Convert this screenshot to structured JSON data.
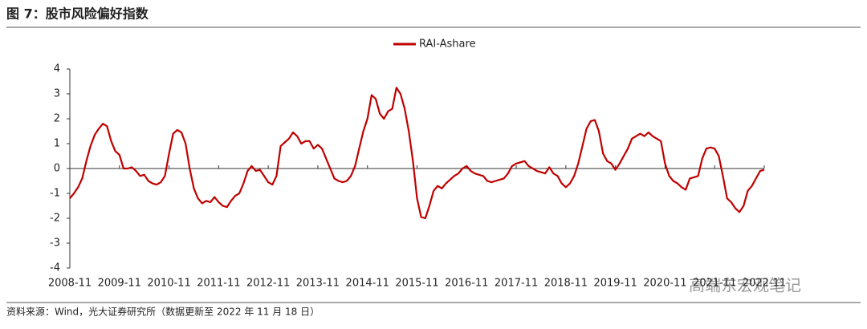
{
  "header": {
    "title": "图 7：股市风险偏好指数"
  },
  "chart_data": {
    "type": "line",
    "categories": [
      "2008-11",
      null,
      null,
      null,
      null,
      null,
      null,
      null,
      null,
      null,
      null,
      null,
      "2009-11",
      null,
      null,
      null,
      null,
      null,
      null,
      null,
      null,
      null,
      null,
      null,
      "2010-11",
      null,
      null,
      null,
      null,
      null,
      null,
      null,
      null,
      null,
      null,
      null,
      "2011-11",
      null,
      null,
      null,
      null,
      null,
      null,
      null,
      null,
      null,
      null,
      null,
      "2012-11",
      null,
      null,
      null,
      null,
      null,
      null,
      null,
      null,
      null,
      null,
      null,
      "2013-11",
      null,
      null,
      null,
      null,
      null,
      null,
      null,
      null,
      null,
      null,
      null,
      "2014-11",
      null,
      null,
      null,
      null,
      null,
      null,
      null,
      null,
      null,
      null,
      null,
      "2015-11",
      null,
      null,
      null,
      null,
      null,
      null,
      null,
      null,
      null,
      null,
      null,
      "2016-11",
      null,
      null,
      null,
      null,
      null,
      null,
      null,
      null,
      null,
      null,
      null,
      "2017-11",
      null,
      null,
      null,
      null,
      null,
      null,
      null,
      null,
      null,
      null,
      null,
      "2018-11",
      null,
      null,
      null,
      null,
      null,
      null,
      null,
      null,
      null,
      null,
      null,
      "2019-11",
      null,
      null,
      null,
      null,
      null,
      null,
      null,
      null,
      null,
      null,
      null,
      "2020-11",
      null,
      null,
      null,
      null,
      null,
      null,
      null,
      null,
      null,
      null,
      null,
      "2021-11",
      null,
      null,
      null,
      null,
      null,
      null,
      null,
      null,
      null,
      null,
      null,
      "2022-11"
    ],
    "series": [
      {
        "name": "RAI-Ashare",
        "color": "#c00000",
        "values": [
          -1.2,
          -1.0,
          -0.75,
          -0.4,
          0.3,
          0.9,
          1.35,
          1.6,
          1.8,
          1.7,
          1.1,
          0.7,
          0.55,
          0.0,
          0.0,
          0.05,
          -0.1,
          -0.3,
          -0.25,
          -0.5,
          -0.6,
          -0.65,
          -0.55,
          -0.3,
          0.6,
          1.4,
          1.55,
          1.45,
          1.0,
          0.0,
          -0.8,
          -1.2,
          -1.4,
          -1.3,
          -1.35,
          -1.15,
          -1.35,
          -1.5,
          -1.55,
          -1.3,
          -1.1,
          -1.0,
          -0.6,
          -0.1,
          0.1,
          -0.1,
          -0.05,
          -0.3,
          -0.55,
          -0.65,
          -0.3,
          0.9,
          1.05,
          1.2,
          1.45,
          1.3,
          1.0,
          1.1,
          1.1,
          0.8,
          0.95,
          0.8,
          0.4,
          0.0,
          -0.4,
          -0.5,
          -0.55,
          -0.5,
          -0.3,
          0.1,
          0.8,
          1.5,
          2.0,
          2.95,
          2.8,
          2.2,
          2.0,
          2.3,
          2.4,
          3.25,
          3.0,
          2.4,
          1.5,
          0.3,
          -1.2,
          -1.95,
          -2.0,
          -1.5,
          -0.9,
          -0.7,
          -0.8,
          -0.6,
          -0.45,
          -0.3,
          -0.2,
          0.0,
          0.1,
          -0.1,
          -0.2,
          -0.25,
          -0.3,
          -0.5,
          -0.55,
          -0.5,
          -0.45,
          -0.4,
          -0.2,
          0.1,
          0.2,
          0.25,
          0.3,
          0.1,
          0.0,
          -0.1,
          -0.15,
          -0.2,
          0.05,
          -0.2,
          -0.3,
          -0.6,
          -0.75,
          -0.6,
          -0.3,
          0.2,
          0.9,
          1.6,
          1.9,
          1.95,
          1.5,
          0.6,
          0.3,
          0.2,
          -0.05,
          0.2,
          0.5,
          0.8,
          1.2,
          1.3,
          1.4,
          1.3,
          1.45,
          1.3,
          1.2,
          1.1,
          0.2,
          -0.3,
          -0.5,
          -0.6,
          -0.75,
          -0.85,
          -0.4,
          -0.35,
          -0.3,
          0.4,
          0.8,
          0.85,
          0.8,
          0.5,
          -0.3,
          -1.2,
          -1.35,
          -1.6,
          -1.75,
          -1.5,
          -0.9,
          -0.7,
          -0.4,
          -0.1,
          -0.05
        ]
      }
    ],
    "ylim": [
      -4,
      4
    ],
    "yticks": [
      -4,
      -3,
      -2,
      -1,
      0,
      1,
      2,
      3,
      4
    ],
    "legend": "top"
  },
  "footer": {
    "source": "资料来源：Wind，光大证券研究所（数据更新至 2022 年 11 月 18 日）",
    "watermark": "高端东宏观笔记"
  }
}
